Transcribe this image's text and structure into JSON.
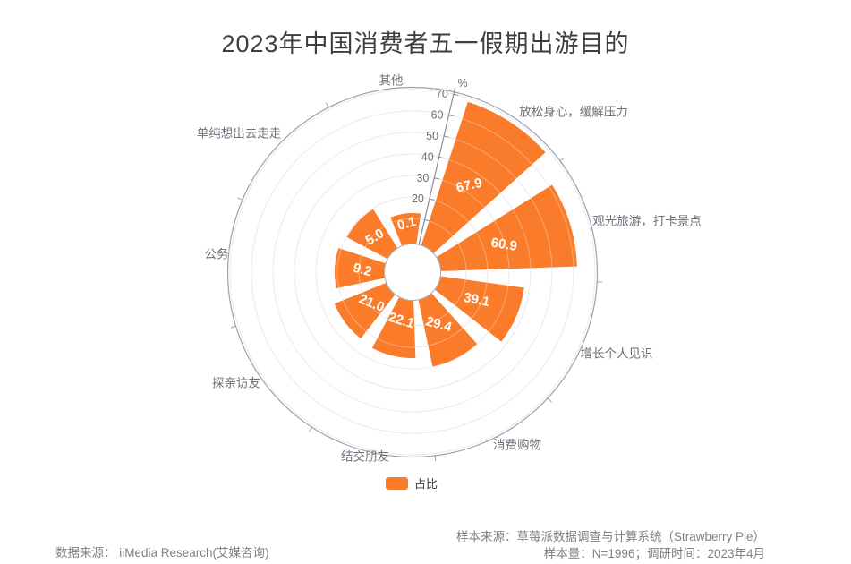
{
  "title": "2023年中国消费者五一假期出游目的",
  "chart_data": {
    "type": "bar",
    "subtype": "polar-rose",
    "series_name": "占比",
    "unit": "%",
    "categories": [
      "其他",
      "放松身心，缓解压力",
      "观光旅游，打卡景点",
      "增长个人见识",
      "消费购物",
      "结交朋友",
      "探亲访友",
      "公务",
      "单纯想出去走走"
    ],
    "values": [
      0.1,
      67.9,
      60.9,
      39.1,
      29.4,
      22.1,
      21.0,
      9.2,
      5.0
    ],
    "radial_axis": {
      "name": "%",
      "min": 0,
      "max": 70,
      "interval": 10,
      "tick_labels": [
        "20",
        "30",
        "40",
        "50",
        "60",
        "70"
      ]
    },
    "legend_position": "bottom",
    "grid": true,
    "bar_color": "#FA7B2A"
  },
  "legend": {
    "label": "占比",
    "color": "#FA7B2A"
  },
  "footer": {
    "data_source": "数据来源： iiMedia Research(艾媒咨询)",
    "sample_source": "样本来源：草莓派数据调查与计算系统（Strawberry Pie）",
    "sample_info": "样本量：N=1996；调研时间：2023年4月"
  },
  "colors": {
    "bar": "#FA7B2A",
    "grid_line": "#DCE2EF",
    "axis_line": "#898D96",
    "outer_circle": "#9DA1AA",
    "tick_label": "#6E7079",
    "category_label": "#6E7079",
    "value_label": "#FFFFFF",
    "title": "#3D3D42",
    "footer_text": "#808085"
  }
}
